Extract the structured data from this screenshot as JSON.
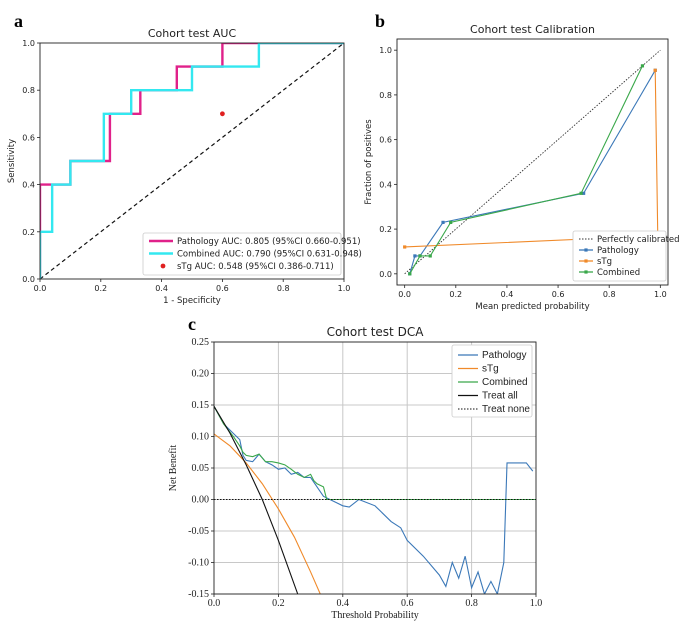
{
  "chart_data": [
    {
      "panel": "a",
      "type": "line",
      "title": "Cohort test AUC",
      "xlabel": "1 - Specificity",
      "ylabel": "Sensitivity",
      "xlim": [
        0,
        1
      ],
      "ylim": [
        0,
        1
      ],
      "xticks": [
        "0.0",
        "0.2",
        "0.4",
        "0.6",
        "0.8",
        "1.0"
      ],
      "yticks": [
        "0.0",
        "0.2",
        "0.4",
        "0.6",
        "0.8",
        "1.0"
      ],
      "series": [
        {
          "name": "Pathology AUC: 0.805 (95%CI 0.660-0.951)",
          "color": "#e0218a",
          "x": [
            0,
            0,
            0.03,
            0.03,
            0.1,
            0.1,
            0.21,
            0.21,
            0.23,
            0.23,
            0.3,
            0.3,
            0.33,
            0.33,
            0.45,
            0.45,
            0.6,
            0.6,
            0.72,
            0.72,
            1.0
          ],
          "y": [
            0,
            0.4,
            0.4,
            0.4,
            0.4,
            0.5,
            0.5,
            0.5,
            0.5,
            0.7,
            0.7,
            0.7,
            0.7,
            0.8,
            0.8,
            0.9,
            0.9,
            1.0,
            1.0,
            1.0,
            1.0
          ]
        },
        {
          "name": "Combined AUC: 0.790 (95%CI 0.631-0.948)",
          "color": "#33e8f0",
          "x": [
            0,
            0,
            0.04,
            0.04,
            0.1,
            0.1,
            0.21,
            0.21,
            0.3,
            0.3,
            0.45,
            0.45,
            0.5,
            0.5,
            0.72,
            0.72,
            1.0
          ],
          "y": [
            0,
            0.2,
            0.2,
            0.4,
            0.4,
            0.5,
            0.5,
            0.7,
            0.7,
            0.8,
            0.8,
            0.8,
            0.8,
            0.9,
            0.9,
            1.0,
            1.0
          ]
        },
        {
          "name": "sTg AUC: 0.548 (95%CI 0.386-0.711)",
          "color": "#e02020",
          "type": "scatter",
          "x": [
            0.6
          ],
          "y": [
            0.7
          ]
        }
      ],
      "reference": {
        "x": [
          0,
          1
        ],
        "y": [
          0,
          1
        ],
        "style": "dashed"
      },
      "legend": "bottom-right"
    },
    {
      "panel": "b",
      "type": "line",
      "title": "Cohort test Calibration",
      "xlabel": "Mean predicted probability",
      "ylabel": "Fraction of positives",
      "xlim": [
        -0.03,
        1.03
      ],
      "ylim": [
        -0.05,
        1.05
      ],
      "xticks": [
        "0.0",
        "0.2",
        "0.4",
        "0.6",
        "0.8",
        "1.0"
      ],
      "yticks": [
        "0.0",
        "0.2",
        "0.4",
        "0.6",
        "0.8",
        "1.0"
      ],
      "series": [
        {
          "name": "Perfectly calibrated",
          "color": "#333333",
          "style": "dotted",
          "x": [
            0,
            1
          ],
          "y": [
            0,
            1
          ]
        },
        {
          "name": "Pathology",
          "color": "#3b78b8",
          "x": [
            0.02,
            0.04,
            0.06,
            0.15,
            0.7,
            0.98
          ],
          "y": [
            0.0,
            0.08,
            0.08,
            0.23,
            0.36,
            0.91
          ]
        },
        {
          "name": "sTg",
          "color": "#f08a2a",
          "x": [
            0.0,
            0.99,
            0.98
          ],
          "y": [
            0.12,
            0.17,
            0.91
          ]
        },
        {
          "name": "Combined",
          "color": "#3aa84a",
          "x": [
            0.02,
            0.06,
            0.1,
            0.18,
            0.69,
            0.93
          ],
          "y": [
            0.0,
            0.08,
            0.08,
            0.23,
            0.36,
            0.93
          ]
        }
      ],
      "legend": "bottom-right"
    },
    {
      "panel": "c",
      "type": "line",
      "title": "Cohort test DCA",
      "xlabel": "Threshold Probability",
      "ylabel": "Net Benefit",
      "xlim": [
        0,
        1
      ],
      "ylim": [
        -0.15,
        0.25
      ],
      "xticks": [
        "0.0",
        "0.2",
        "0.4",
        "0.6",
        "0.8",
        "1.0"
      ],
      "yticks": [
        "-0.15",
        "-0.10",
        "-0.05",
        "0.00",
        "0.05",
        "0.10",
        "0.15",
        "0.20",
        "0.25"
      ],
      "series": [
        {
          "name": "Pathology",
          "color": "#3b78b8",
          "x": [
            0,
            0.03,
            0.06,
            0.08,
            0.09,
            0.1,
            0.12,
            0.14,
            0.16,
            0.18,
            0.2,
            0.22,
            0.24,
            0.26,
            0.28,
            0.3,
            0.32,
            0.34,
            0.36,
            0.38,
            0.4,
            0.42,
            0.45,
            0.5,
            0.55,
            0.58,
            0.6,
            0.65,
            0.7,
            0.72,
            0.74,
            0.76,
            0.78,
            0.8,
            0.82,
            0.84,
            0.86,
            0.88,
            0.9,
            0.91,
            0.97,
            0.99
          ],
          "y": [
            0.148,
            0.12,
            0.105,
            0.095,
            0.07,
            0.062,
            0.06,
            0.072,
            0.06,
            0.055,
            0.048,
            0.05,
            0.04,
            0.043,
            0.035,
            0.035,
            0.02,
            0.005,
            0.0,
            -0.005,
            -0.01,
            -0.012,
            0.0,
            -0.01,
            -0.035,
            -0.045,
            -0.065,
            -0.09,
            -0.12,
            -0.138,
            -0.1,
            -0.125,
            -0.09,
            -0.14,
            -0.115,
            -0.15,
            -0.13,
            -0.15,
            -0.1,
            0.058,
            0.058,
            0.045
          ]
        },
        {
          "name": "sTg",
          "color": "#f08a2a",
          "x": [
            0,
            0.05,
            0.1,
            0.15,
            0.2,
            0.25,
            0.3,
            0.33
          ],
          "y": [
            0.104,
            0.085,
            0.058,
            0.025,
            -0.015,
            -0.06,
            -0.115,
            -0.15
          ]
        },
        {
          "name": "Combined",
          "color": "#3aa84a",
          "x": [
            0,
            0.03,
            0.06,
            0.08,
            0.09,
            0.1,
            0.12,
            0.14,
            0.16,
            0.18,
            0.2,
            0.22,
            0.24,
            0.26,
            0.28,
            0.3,
            0.31,
            0.32,
            0.34,
            0.35,
            0.36,
            1.0
          ],
          "y": [
            0.148,
            0.12,
            0.1,
            0.085,
            0.075,
            0.07,
            0.068,
            0.072,
            0.06,
            0.06,
            0.058,
            0.055,
            0.048,
            0.04,
            0.035,
            0.04,
            0.03,
            0.025,
            0.02,
            0.0,
            0.0,
            0.0
          ]
        },
        {
          "name": "Treat all",
          "color": "#111111",
          "x": [
            0,
            0.05,
            0.1,
            0.15,
            0.2,
            0.26
          ],
          "y": [
            0.148,
            0.105,
            0.055,
            0.0,
            -0.065,
            -0.15
          ]
        },
        {
          "name": "Treat none",
          "color": "#111111",
          "style": "dotted",
          "x": [
            0,
            1
          ],
          "y": [
            0,
            0
          ]
        }
      ],
      "legend": "top-right",
      "grid": true
    }
  ],
  "panel_letters": {
    "a": "a",
    "b": "b",
    "c": "c"
  }
}
